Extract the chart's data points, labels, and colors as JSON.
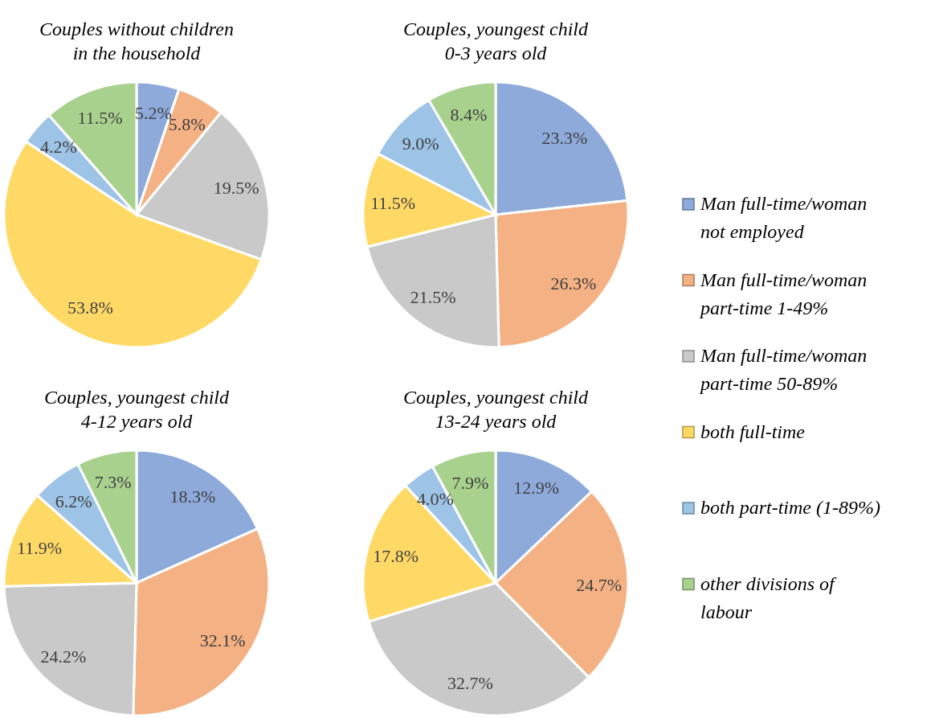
{
  "chart_data": [
    {
      "type": "pie",
      "title": "Couples without children in the household",
      "categories": [
        "Man full-time/woman not employed",
        "Man full-time/woman part-time 1-49%",
        "Man full-time/woman part-time 50-89%",
        "both full-time",
        "both part-time (1-89%)",
        "other divisions of labour"
      ],
      "values": [
        5.2,
        5.8,
        19.5,
        53.8,
        4.2,
        11.5
      ],
      "value_labels": [
        "5.2%",
        "5.8%",
        "19.5%",
        "53.8%",
        "4.2%",
        "11.5%"
      ],
      "colors": [
        "#8eaadb",
        "#f4b183",
        "#c9c9c9",
        "#ffd966",
        "#9dc3e6",
        "#a9d18e"
      ],
      "legend": "right"
    },
    {
      "type": "pie",
      "title": "Couples, youngest child 0-3 years old",
      "values": [
        23.3,
        26.3,
        21.5,
        11.5,
        9.0,
        8.4
      ],
      "value_labels": [
        "23.3%",
        "26.3%",
        "21.5%",
        "11.5%",
        "9.0%",
        "8.4%"
      ],
      "colors": [
        "#8eaadb",
        "#f4b183",
        "#c9c9c9",
        "#ffd966",
        "#9dc3e6",
        "#a9d18e"
      ]
    },
    {
      "type": "pie",
      "title": "Couples, youngest child 4-12 years old",
      "values": [
        18.3,
        32.1,
        24.2,
        11.9,
        6.2,
        7.3
      ],
      "value_labels": [
        "18.3%",
        "32.1%",
        "24.2%",
        "11.9%",
        "6.2%",
        "7.3%"
      ],
      "colors": [
        "#8eaadb",
        "#f4b183",
        "#c9c9c9",
        "#ffd966",
        "#9dc3e6",
        "#a9d18e"
      ]
    },
    {
      "type": "pie",
      "title": "Couples, youngest child 13-24 years old",
      "values": [
        12.9,
        24.7,
        32.7,
        17.8,
        4.0,
        7.9
      ],
      "value_labels": [
        "12.9%",
        "24.7%",
        "32.7%",
        "17.8%",
        "4.0%",
        "7.9%"
      ],
      "colors": [
        "#8eaadb",
        "#f4b183",
        "#c9c9c9",
        "#ffd966",
        "#9dc3e6",
        "#a9d18e"
      ]
    }
  ]
}
